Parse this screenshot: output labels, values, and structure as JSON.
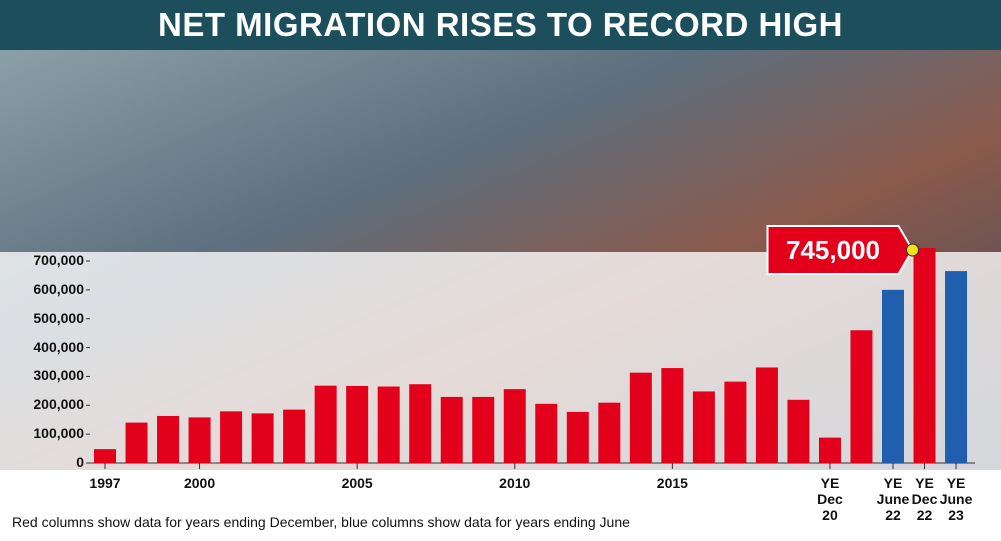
{
  "chart_data": {
    "type": "bar",
    "title": "NET MIGRATION RISES TO RECORD HIGH",
    "footnote": "Red columns show data for years ending December, blue columns show data for years ending June",
    "categories": [
      "1997",
      null,
      null,
      "2000",
      null,
      null,
      null,
      null,
      "2005",
      null,
      null,
      null,
      null,
      "2010",
      null,
      null,
      null,
      null,
      "2015",
      null,
      null,
      null,
      null,
      "YE Dec 20",
      null,
      "YE June 22",
      "YE Dec 22",
      "YE June 23"
    ],
    "values": [
      48000,
      140000,
      163000,
      158000,
      179000,
      172000,
      185000,
      268000,
      267000,
      265000,
      273000,
      229000,
      229000,
      256000,
      205000,
      177000,
      209000,
      313000,
      329000,
      248000,
      282000,
      331000,
      219000,
      88000,
      460000,
      600000,
      745000,
      665000
    ],
    "value_labels": [
      null,
      null,
      null,
      null,
      null,
      null,
      null,
      null,
      null,
      null,
      null,
      null,
      null,
      null,
      null,
      null,
      null,
      null,
      null,
      null,
      null,
      null,
      null,
      null,
      null,
      null,
      "745,000",
      null
    ],
    "colors": [
      "#e3001b",
      "#e3001b",
      "#e3001b",
      "#e3001b",
      "#e3001b",
      "#e3001b",
      "#e3001b",
      "#e3001b",
      "#e3001b",
      "#e3001b",
      "#e3001b",
      "#e3001b",
      "#e3001b",
      "#e3001b",
      "#e3001b",
      "#e3001b",
      "#e3001b",
      "#e3001b",
      "#e3001b",
      "#e3001b",
      "#e3001b",
      "#e3001b",
      "#e3001b",
      "#e3001b",
      "#e3001b",
      "#1f5fad",
      "#e3001b",
      "#1f5fad"
    ],
    "ylim": [
      0,
      700000
    ],
    "yticks": [
      0,
      {
        "value": 100000,
        "label": "100,000"
      },
      {
        "value": 200000,
        "label": "200,000"
      },
      {
        "value": 300000,
        "label": "300,000"
      },
      {
        "value": 400000,
        "label": "400,000"
      },
      {
        "value": 500000,
        "label": "500,000"
      },
      {
        "value": 600000,
        "label": "600,000"
      },
      {
        "value": 700000,
        "label": "700,000"
      }
    ]
  }
}
